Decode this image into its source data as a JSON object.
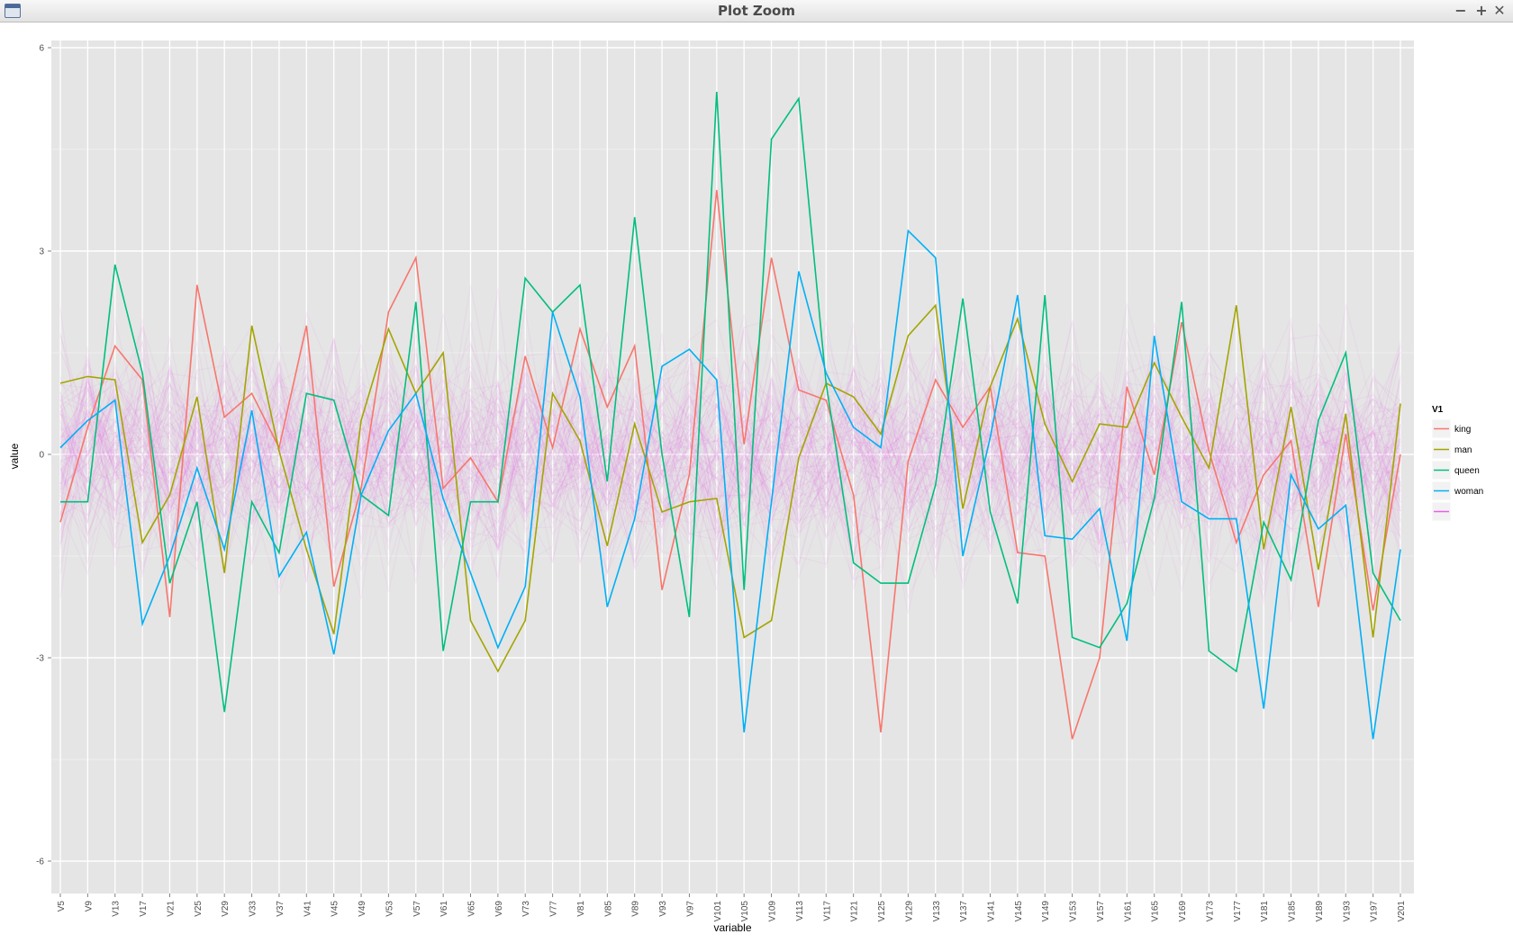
{
  "window": {
    "title": "Plot Zoom",
    "minimize_glyph": "−",
    "maximize_glyph": "+",
    "close_glyph": "✕"
  },
  "chart_data": {
    "type": "line",
    "title": "",
    "xlabel": "variable",
    "ylabel": "value",
    "ylim": [
      -6.6,
      6.1
    ],
    "yticks": [
      6,
      3,
      0,
      -3,
      -6
    ],
    "grid": true,
    "background": "#e5e5e5",
    "legend": {
      "title": "V1",
      "placement": "right"
    },
    "categories": [
      "V5",
      "V9",
      "V13",
      "V17",
      "V21",
      "V25",
      "V29",
      "V33",
      "V37",
      "V41",
      "V45",
      "V49",
      "V53",
      "V57",
      "V61",
      "V65",
      "V69",
      "V73",
      "V77",
      "V81",
      "V85",
      "V89",
      "V93",
      "V97",
      "V101",
      "V105",
      "V109",
      "V113",
      "V117",
      "V121",
      "V125",
      "V129",
      "V133",
      "V137",
      "V141",
      "V145",
      "V149",
      "V153",
      "V157",
      "V161",
      "V165",
      "V169",
      "V173",
      "V177",
      "V181",
      "V185",
      "V189",
      "V193",
      "V197",
      "V201"
    ],
    "background_series": {
      "name": "",
      "color": "#e85fe8",
      "count": 100,
      "opacity": 0.08
    },
    "series": [
      {
        "name": "king",
        "color": "#f8766d",
        "values": [
          -1.0,
          0.4,
          1.6,
          1.1,
          -2.4,
          2.5,
          0.55,
          0.9,
          0.1,
          1.9,
          -1.95,
          -0.5,
          2.1,
          2.9,
          -0.5,
          -0.05,
          -0.7,
          1.45,
          0.1,
          1.85,
          0.7,
          1.6,
          -2.0,
          -0.3,
          3.9,
          0.15,
          2.9,
          0.95,
          0.8,
          -0.6,
          -4.1,
          -0.1,
          1.1,
          0.4,
          1.0,
          -1.45,
          -1.5,
          -4.2,
          -3.0,
          1.0,
          -0.3,
          1.95,
          0.05,
          -1.3,
          -0.3,
          0.2,
          -2.25,
          0.3,
          -2.3,
          0.0
        ]
      },
      {
        "name": "man",
        "color": "#a3a500",
        "values": [
          1.05,
          1.15,
          1.1,
          -1.3,
          -0.6,
          0.85,
          -1.75,
          1.9,
          0.05,
          -1.4,
          -2.65,
          0.5,
          1.85,
          0.9,
          1.5,
          -2.45,
          -3.2,
          -2.45,
          0.9,
          0.2,
          -1.35,
          0.45,
          -0.85,
          -0.7,
          -0.65,
          -2.7,
          -2.45,
          -0.05,
          1.05,
          0.85,
          0.3,
          1.75,
          2.2,
          -0.8,
          1.0,
          2.0,
          0.45,
          -0.4,
          0.45,
          0.4,
          1.35,
          0.55,
          -0.2,
          2.2,
          -1.4,
          0.7,
          -1.7,
          0.6,
          -2.7,
          0.75
        ]
      },
      {
        "name": "queen",
        "color": "#00bf7d",
        "values": [
          -0.7,
          -0.7,
          2.8,
          1.2,
          -1.9,
          -0.7,
          -3.8,
          -0.7,
          -1.45,
          0.9,
          0.8,
          -0.6,
          -0.9,
          2.25,
          -2.9,
          -0.7,
          -0.7,
          2.6,
          2.1,
          2.5,
          -0.4,
          3.5,
          0.0,
          -2.4,
          5.35,
          -2.0,
          4.65,
          5.25,
          1.05,
          -1.6,
          -1.9,
          -1.9,
          -0.45,
          2.3,
          -0.85,
          -2.2,
          2.35,
          -2.7,
          -2.85,
          -2.2,
          -0.65,
          2.25,
          -2.9,
          -3.2,
          -1.0,
          -1.85,
          0.5,
          1.5,
          -1.75,
          -2.45
        ]
      },
      {
        "name": "woman",
        "color": "#00b0f6",
        "values": [
          0.1,
          0.5,
          0.8,
          -2.5,
          -1.5,
          -0.2,
          -1.4,
          0.65,
          -1.8,
          -1.15,
          -2.95,
          -0.6,
          0.35,
          0.9,
          -0.65,
          -1.75,
          -2.85,
          -1.95,
          2.1,
          0.85,
          -2.25,
          -0.95,
          1.3,
          1.55,
          1.1,
          -4.1,
          -0.7,
          2.7,
          1.2,
          0.4,
          0.1,
          3.3,
          2.9,
          -1.5,
          0.25,
          2.35,
          -1.2,
          -1.25,
          -0.8,
          -2.75,
          1.75,
          -0.7,
          -0.95,
          -0.95,
          -3.75,
          -0.3,
          -1.1,
          -0.75,
          -4.2,
          -1.4
        ]
      }
    ]
  }
}
